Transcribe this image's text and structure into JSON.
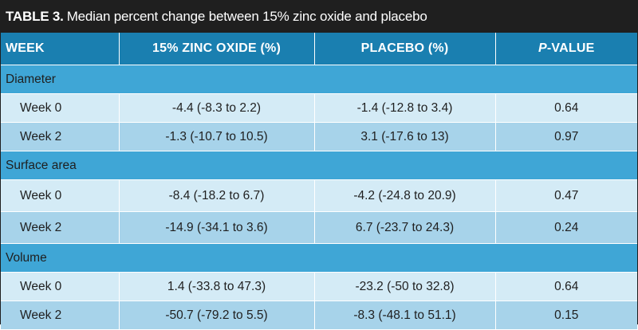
{
  "table": {
    "label": "TABLE 3.",
    "caption": "Median percent change between 15% zinc oxide and placebo",
    "headers": {
      "week": "WEEK",
      "zinc": "15% ZINC OXIDE (%)",
      "placebo": "PLACEBO (%)",
      "p_italic": "P",
      "p_rest": "-VALUE"
    },
    "groups": [
      {
        "name": "Diameter",
        "rows": [
          {
            "week": "Week 0",
            "zinc": "-4.4 (-8.3 to 2.2)",
            "placebo": "-1.4 (-12.8 to 3.4)",
            "p": "0.64"
          },
          {
            "week": "Week 2",
            "zinc": "-1.3 (-10.7 to 10.5)",
            "placebo": "3.1 (-17.6 to 13)",
            "p": "0.97"
          }
        ]
      },
      {
        "name": "Surface area",
        "rows": [
          {
            "week": "Week 0",
            "zinc": "-8.4 (-18.2 to 6.7)",
            "placebo": "-4.2 (-24.8 to 20.9)",
            "p": "0.47"
          },
          {
            "week": "Week 2",
            "zinc": "-14.9 (-34.1 to 3.6)",
            "placebo": "6.7 (-23.7 to 24.3)",
            "p": "0.24"
          }
        ]
      },
      {
        "name": "Volume",
        "rows": [
          {
            "week": "Week 0",
            "zinc": "1.4 (-33.8 to 47.3)",
            "placebo": "-23.2 (-50 to 32.8)",
            "p": "0.64"
          },
          {
            "week": "Week 2",
            "zinc": "-50.7 (-79.2 to 5.5)",
            "placebo": "-8.3 (-48.1 to 51.1)",
            "p": "0.15"
          }
        ]
      }
    ]
  }
}
